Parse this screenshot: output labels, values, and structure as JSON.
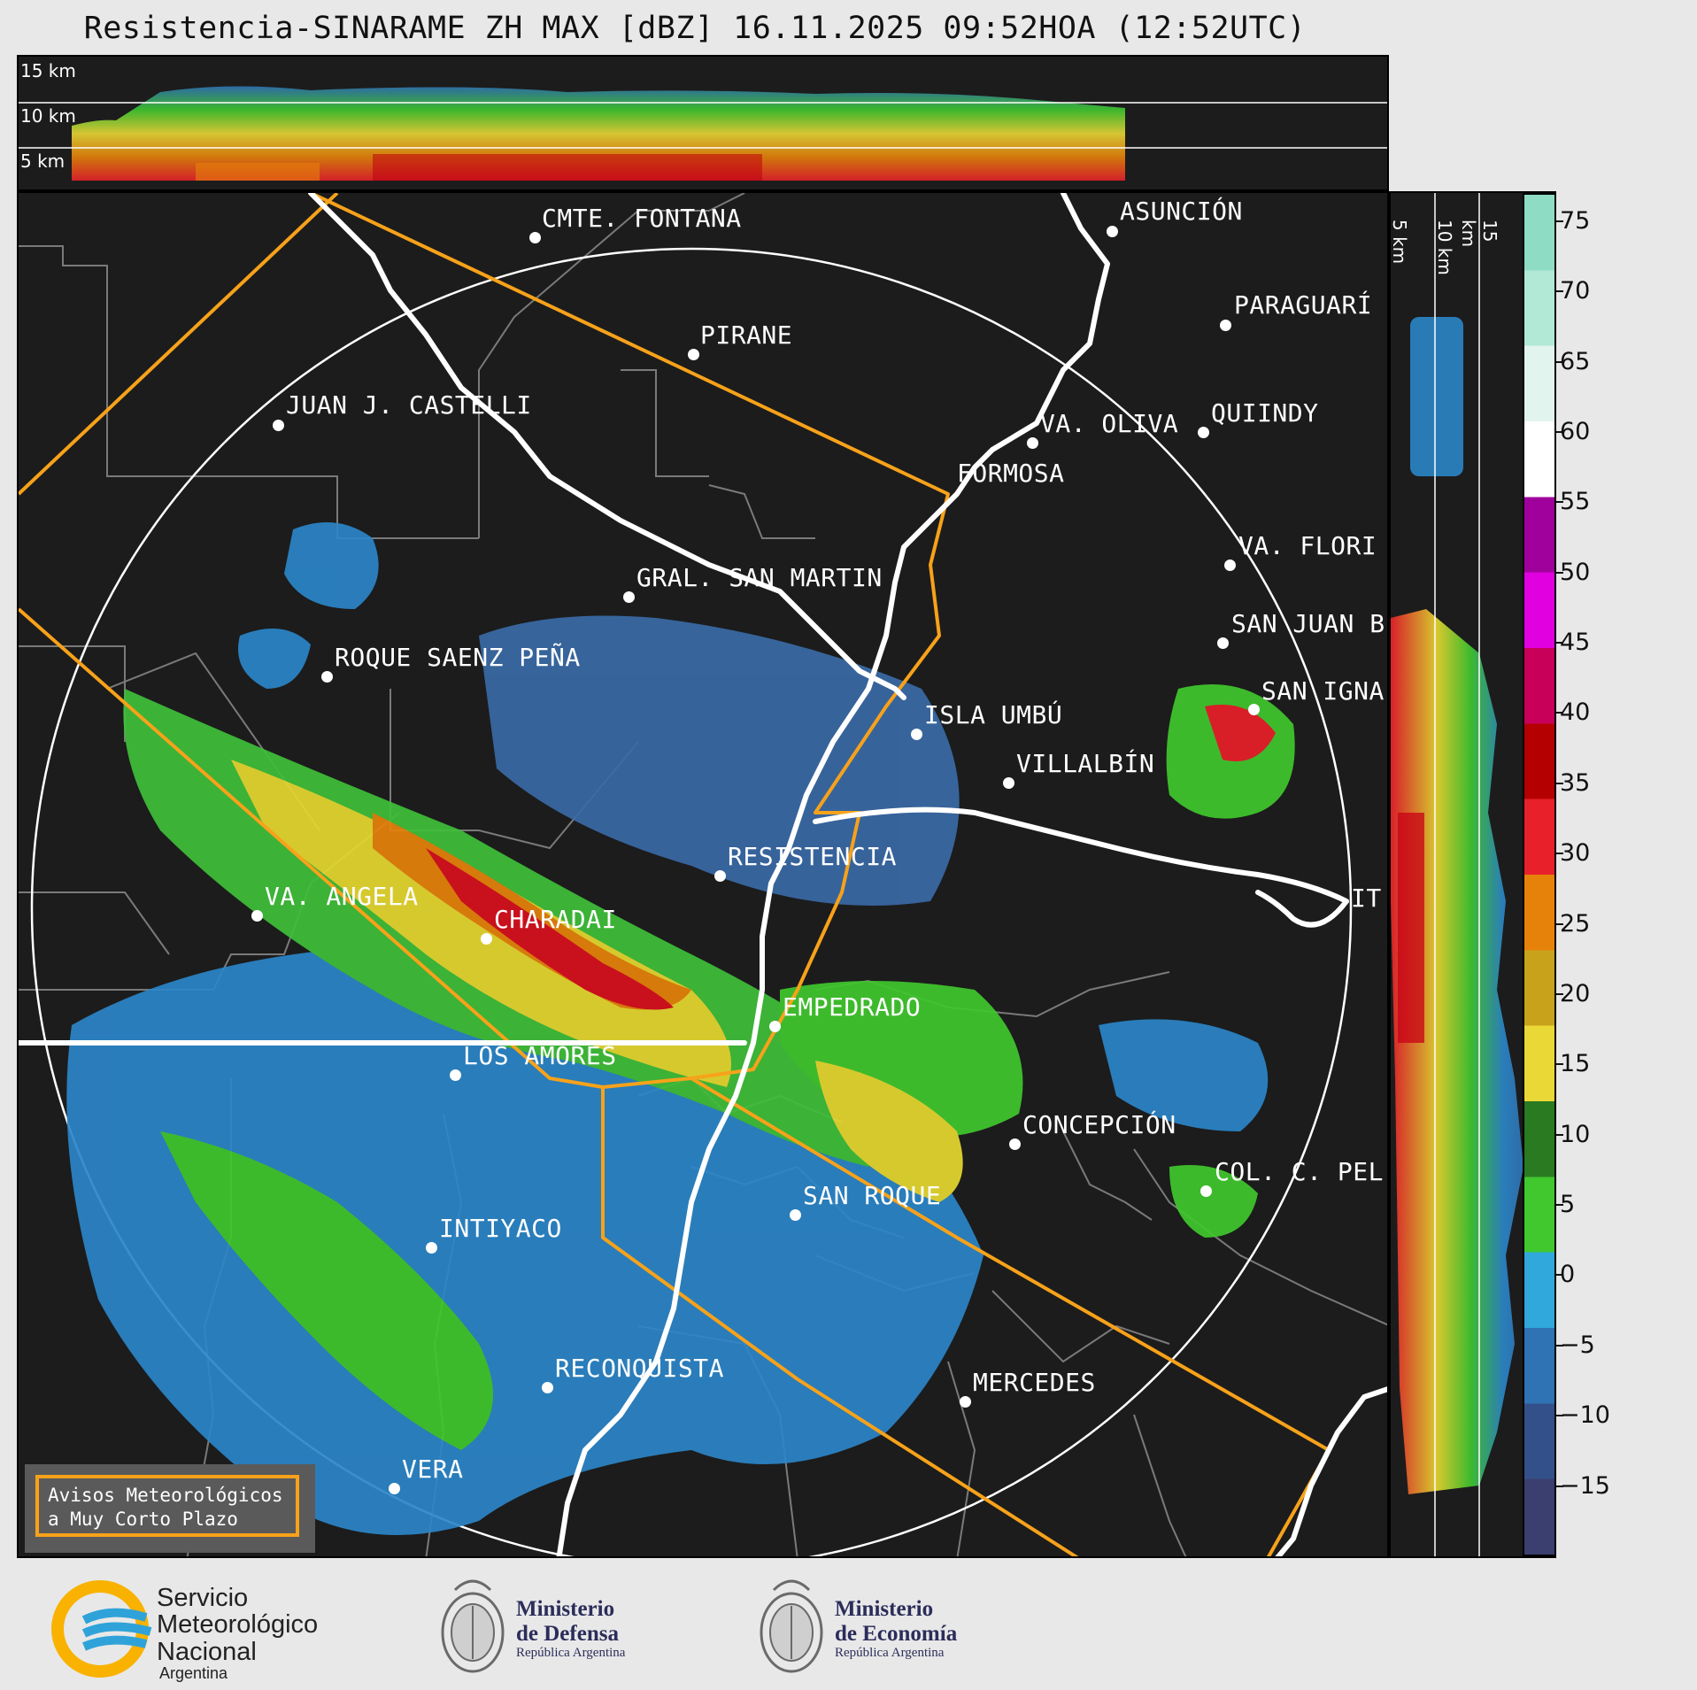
{
  "title": "Resistencia-SINARAME ZH MAX [dBZ] 16.11.2025 09:52HOA (12:52UTC)",
  "altitude_labels_top": [
    "15 km",
    "10 km",
    "5 km"
  ],
  "altitude_labels_side": [
    "5 km",
    "10 km",
    "15 km"
  ],
  "cities": [
    {
      "name": "CMTE. FONTANA"
    },
    {
      "name": "ASUNCIÓN"
    },
    {
      "name": "PIRANE"
    },
    {
      "name": "PARAGUARÍ"
    },
    {
      "name": "JUAN J. CASTELLI"
    },
    {
      "name": "VA. OLIVA"
    },
    {
      "name": "QUIINDY"
    },
    {
      "name": "FORMOSA"
    },
    {
      "name": "VA. FLORI"
    },
    {
      "name": "GRAL. SAN MARTIN"
    },
    {
      "name": "SAN JUAN B"
    },
    {
      "name": "ROQUE SAENZ PEÑA"
    },
    {
      "name": "SAN IGNA"
    },
    {
      "name": "ISLA UMBÚ"
    },
    {
      "name": "VILLALBÍN"
    },
    {
      "name": "RESISTENCIA"
    },
    {
      "name": "VA. ANGELA"
    },
    {
      "name": "CHARADAI"
    },
    {
      "name": "IT"
    },
    {
      "name": "EMPEDRADO"
    },
    {
      "name": "LOS AMORES"
    },
    {
      "name": "CONCEPCIÓN"
    },
    {
      "name": "COL. C. PEL"
    },
    {
      "name": "SAN ROQUE"
    },
    {
      "name": "INTIYACO"
    },
    {
      "name": "RECONQUISTA"
    },
    {
      "name": "MERCEDES"
    },
    {
      "name": "VERA"
    }
  ],
  "colorbar": {
    "unit": "dBZ",
    "min": -20,
    "max": 77,
    "ticks": [
      "75",
      "70",
      "65",
      "60",
      "55",
      "50",
      "45",
      "40",
      "35",
      "30",
      "25",
      "20",
      "15",
      "10",
      "5",
      "0",
      "−5",
      "−10",
      "−15"
    ],
    "colors": [
      "#8fdcc4",
      "#b2e8d6",
      "#e2f4ee",
      "#ffffff",
      "#a0009c",
      "#e000e0",
      "#c8005a",
      "#b40000",
      "#e8202a",
      "#e6820a",
      "#c9a21c",
      "#ead836",
      "#2a7a22",
      "#40c82e",
      "#30a8dc",
      "#2f73b4",
      "#34508a",
      "#3a3f70"
    ]
  },
  "avisos": {
    "line1": "Avisos Meteorológicos",
    "line2": "a Muy Corto Plazo"
  },
  "footer": {
    "smn_line1": "Servicio",
    "smn_line2": "Meteorológico",
    "smn_line3": "Nacional",
    "smn_line4": "Argentina",
    "defensa_line1": "Ministerio",
    "defensa_line2": "de Defensa",
    "defensa_line3": "República Argentina",
    "economia_line1": "Ministerio",
    "economia_line2": "de Economía",
    "economia_line3": "República Argentina"
  }
}
